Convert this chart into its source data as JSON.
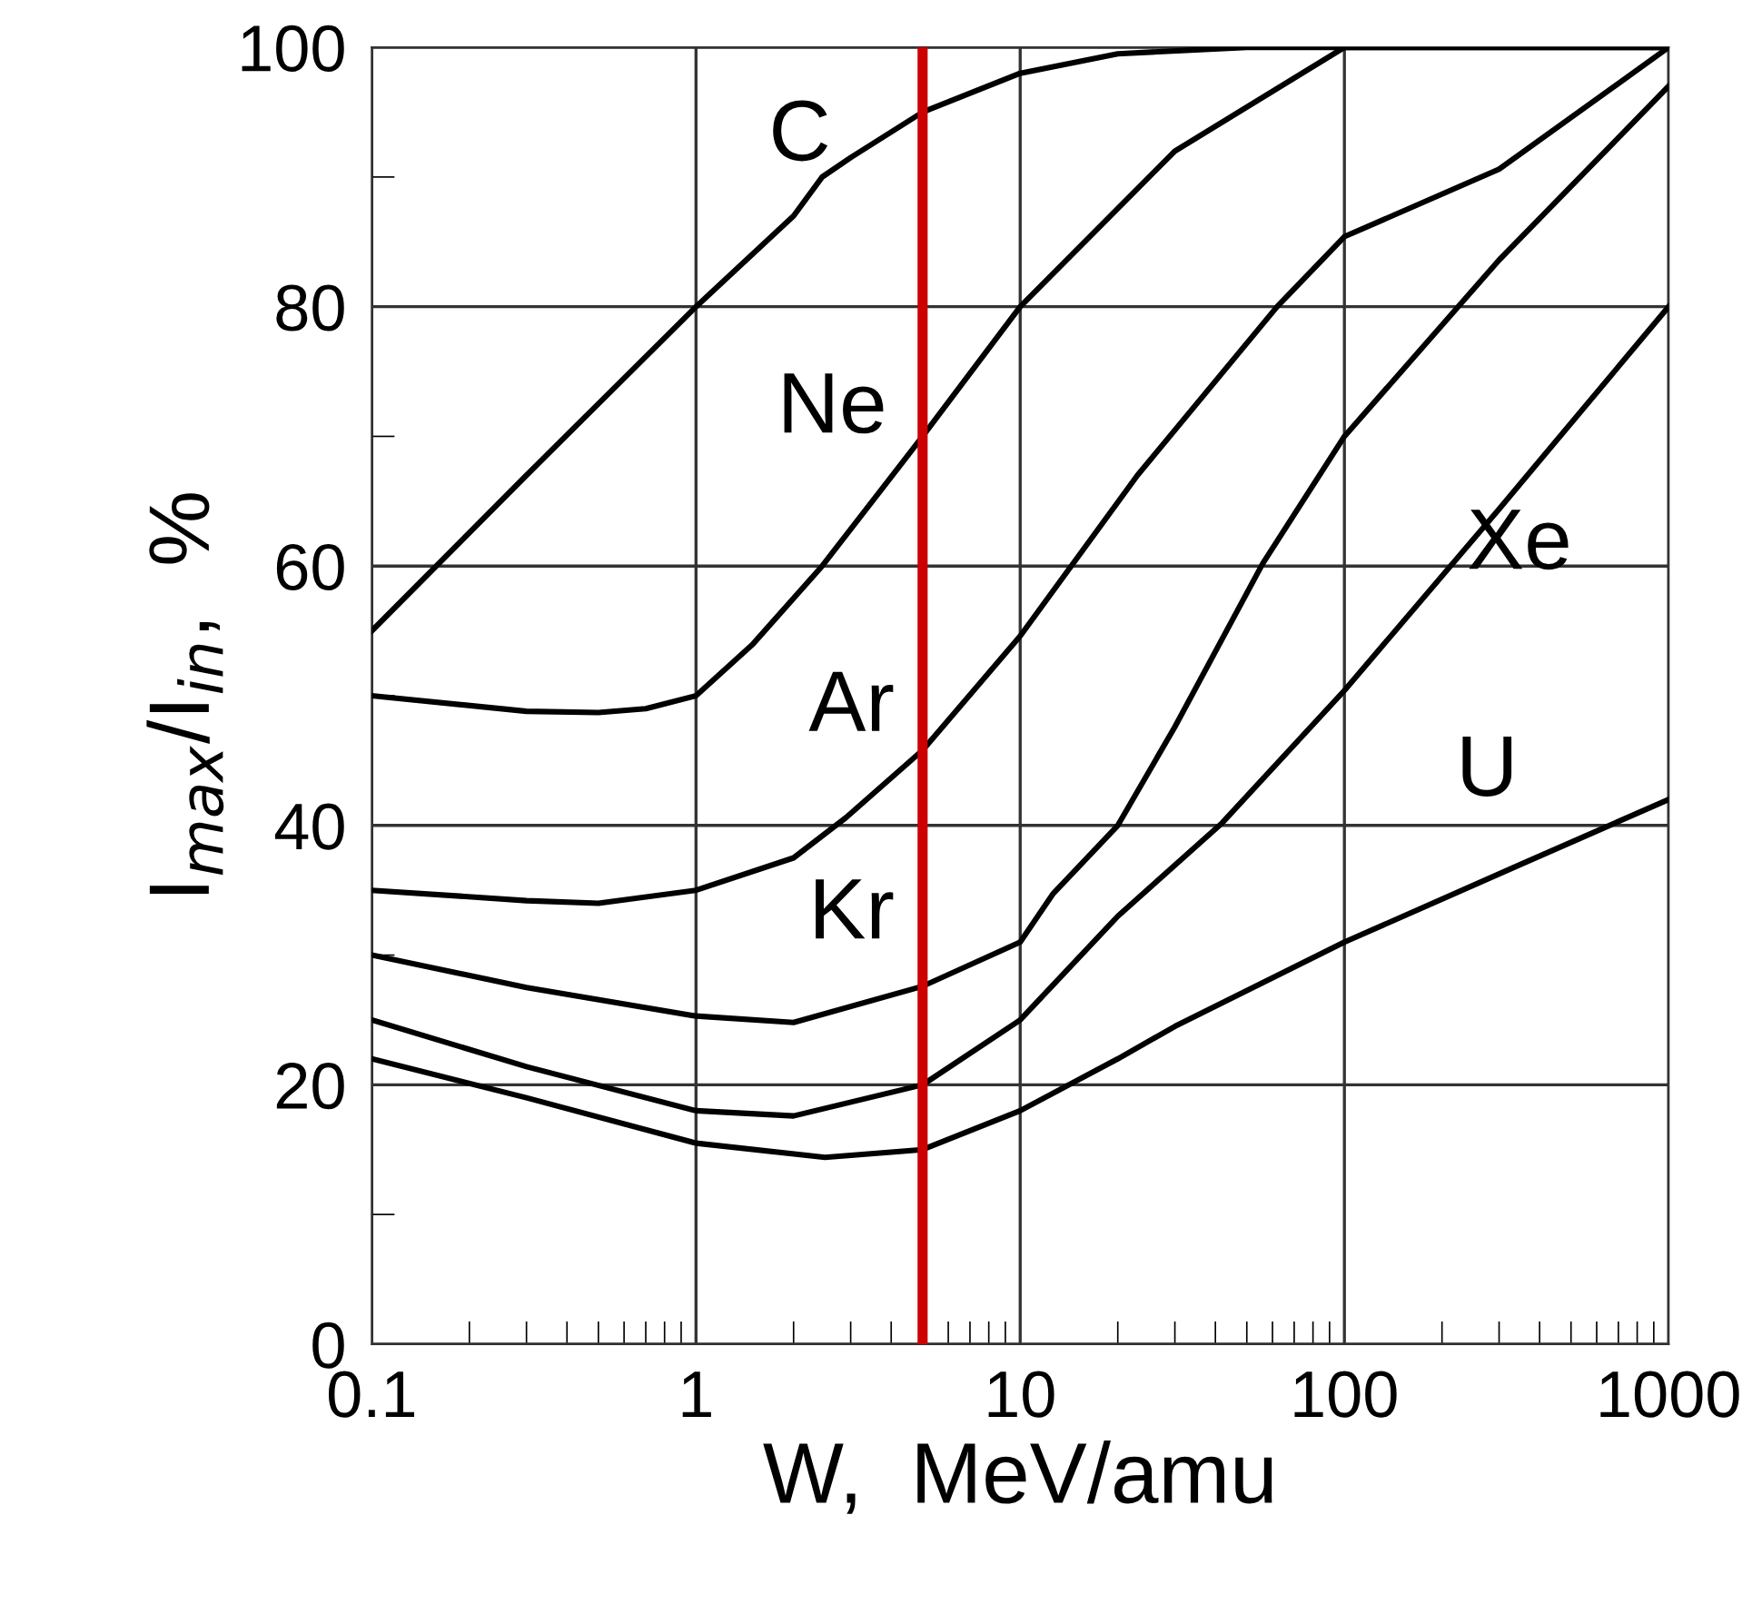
{
  "chart_data": {
    "type": "line",
    "xlabel": "W,  MeV/amu",
    "ylabel": "I$_{max}$/I$_{in}$,  %",
    "log": "x",
    "xlim": [
      0.1,
      1000
    ],
    "ylim": [
      0,
      100
    ],
    "xticks": [
      0.1,
      1,
      10,
      100,
      1000
    ],
    "yticks": [
      0,
      20,
      40,
      60,
      80,
      100
    ],
    "grid": true,
    "marker": "none",
    "line_style": "solid",
    "series": [
      {
        "name": "C",
        "color": "#000000",
        "x": [
          0.1,
          0.3,
          1,
          2,
          2.45,
          3,
          5,
          10,
          20,
          50,
          100,
          1000
        ],
        "values": [
          55,
          67,
          80,
          87,
          90,
          91.5,
          95,
          98,
          99.5,
          100,
          100,
          100
        ]
      },
      {
        "name": "Ne",
        "color": "#000000",
        "x": [
          0.1,
          0.3,
          0.5,
          0.7,
          1,
          1.5,
          2.45,
          5,
          10,
          30,
          100,
          1000
        ],
        "values": [
          50,
          48.8,
          48.7,
          49,
          50,
          54,
          60,
          70,
          80,
          92,
          100,
          100
        ]
      },
      {
        "name": "Ar",
        "color": "#000000",
        "x": [
          0.1,
          0.3,
          0.5,
          1,
          2,
          2.9,
          5,
          10,
          23,
          62,
          100,
          300,
          1000
        ],
        "values": [
          35,
          34.2,
          34,
          35,
          37.5,
          40.6,
          45.8,
          54.6,
          67,
          80,
          85.4,
          90.6,
          100
        ]
      },
      {
        "name": "Kr",
        "color": "#000000",
        "x": [
          0.1,
          0.3,
          1,
          2,
          5,
          10,
          12.6,
          20,
          30,
          56,
          100,
          300,
          1000
        ],
        "values": [
          30,
          27.5,
          25.3,
          24.8,
          27.6,
          31,
          34.7,
          40,
          47.6,
          60.2,
          70,
          83.6,
          97
        ]
      },
      {
        "name": "Xe",
        "color": "#000000",
        "x": [
          0.1,
          0.3,
          1,
          2,
          5,
          10,
          20,
          42,
          100,
          300,
          1000
        ],
        "values": [
          25,
          21.4,
          18,
          17.6,
          20,
          25,
          33,
          40.2,
          50.4,
          64.4,
          80
        ]
      },
      {
        "name": "U",
        "color": "#000000",
        "x": [
          0.1,
          0.3,
          1,
          2.5,
          5,
          10,
          20,
          30,
          100,
          350,
          1000
        ],
        "values": [
          22,
          19,
          15.5,
          14.4,
          15,
          18,
          22,
          24.5,
          31,
          37,
          42
        ]
      }
    ],
    "ref_lines": [
      {
        "axis": "x",
        "value": 5,
        "color": "#cc0000",
        "line_style": "solid"
      }
    ]
  }
}
